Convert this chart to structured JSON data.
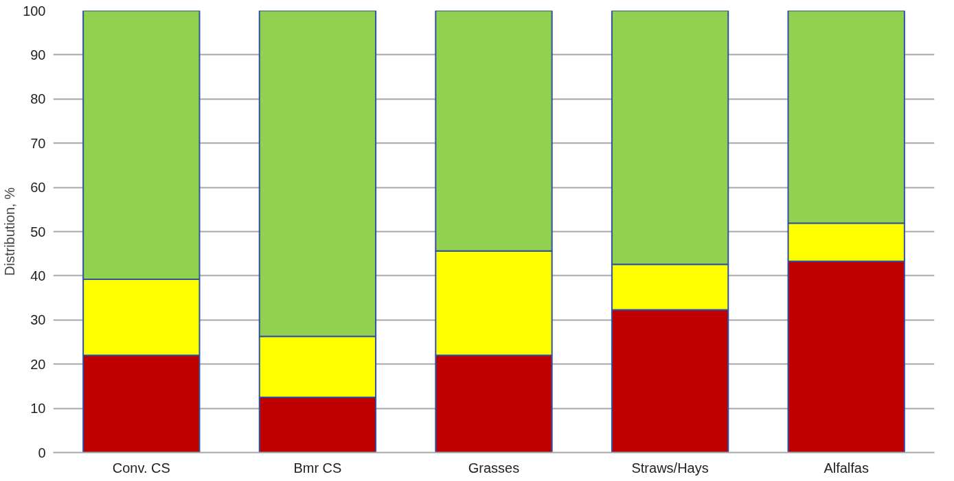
{
  "chart_data": {
    "type": "bar",
    "stacked": true,
    "ylabel": "Distribution, %",
    "categories": [
      "Conv. CS",
      "Bmr CS",
      "Grasses",
      "Straws/Hays",
      "Alfalfas"
    ],
    "series": [
      {
        "color": "#c00000",
        "values": [
          22.0,
          12.5,
          22.0,
          32.3,
          43.3
        ]
      },
      {
        "color": "#ffff00",
        "values": [
          17.2,
          13.8,
          23.6,
          10.3,
          8.6
        ]
      },
      {
        "color": "#92d050",
        "values": [
          60.8,
          73.7,
          54.4,
          57.4,
          48.1
        ]
      }
    ],
    "ylim": [
      0,
      100
    ],
    "yticks": [
      0,
      10,
      20,
      30,
      40,
      50,
      60,
      70,
      80,
      90,
      100
    ],
    "grid": "y"
  }
}
